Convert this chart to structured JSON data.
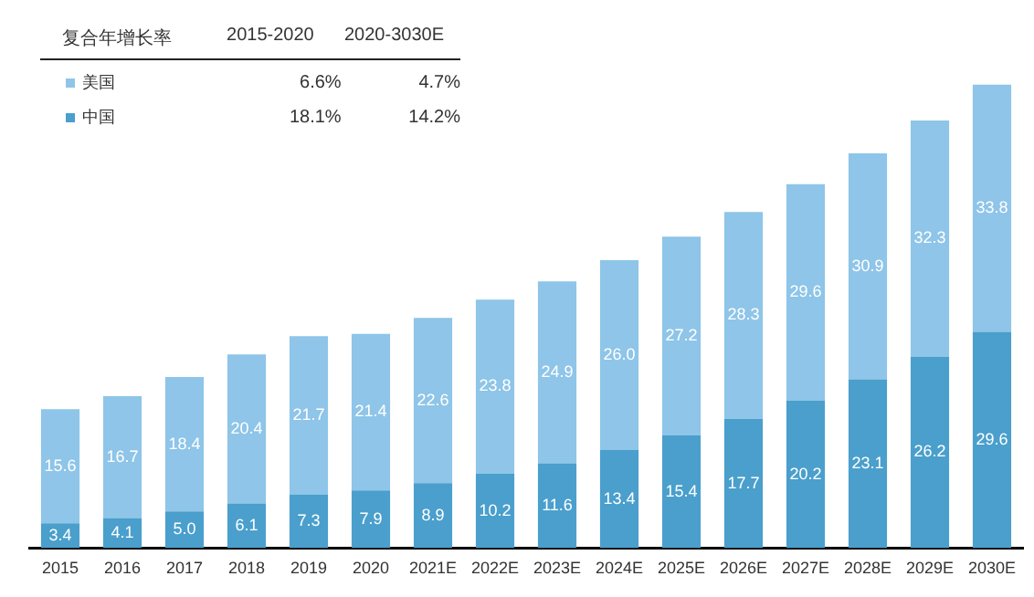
{
  "chart_data": {
    "type": "bar",
    "stacked": true,
    "categories": [
      "2015",
      "2016",
      "2017",
      "2018",
      "2019",
      "2020",
      "2021E",
      "2022E",
      "2023E",
      "2024E",
      "2025E",
      "2026E",
      "2027E",
      "2028E",
      "2029E",
      "2030E"
    ],
    "series": [
      {
        "name": "中国",
        "color": "#4a9fcc",
        "values": [
          3.4,
          4.1,
          5.0,
          6.1,
          7.3,
          7.9,
          8.9,
          10.2,
          11.6,
          13.4,
          15.4,
          17.7,
          20.2,
          23.1,
          26.2,
          29.6
        ],
        "value_labels": [
          "3.4",
          "4.1",
          "5.0",
          "6.1",
          "7.3",
          "7.9",
          "8.9",
          "10.2",
          "11.6",
          "13.4",
          "15.4",
          "17.7",
          "20.2",
          "23.1",
          "26.2",
          "29.6"
        ]
      },
      {
        "name": "美国",
        "color": "#8ec5e8",
        "values": [
          15.6,
          16.7,
          18.4,
          20.4,
          21.7,
          21.4,
          22.6,
          23.8,
          24.9,
          26.0,
          27.2,
          28.3,
          29.6,
          30.9,
          32.3,
          33.8
        ],
        "value_labels": [
          "15.6",
          "16.7",
          "18.4",
          "20.4",
          "21.7",
          "21.4",
          "22.6",
          "23.8",
          "24.9",
          "26.0",
          "27.2",
          "28.3",
          "29.6",
          "30.9",
          "32.3",
          "33.8"
        ]
      }
    ],
    "tick_labels": "x",
    "grid": false,
    "legend": "top left",
    "annotations": [
      "复合年增长率",
      "2015-2020",
      "2020-3030E",
      "6.6%",
      "4.7%",
      "18.1%",
      "14.2%"
    ]
  }
}
